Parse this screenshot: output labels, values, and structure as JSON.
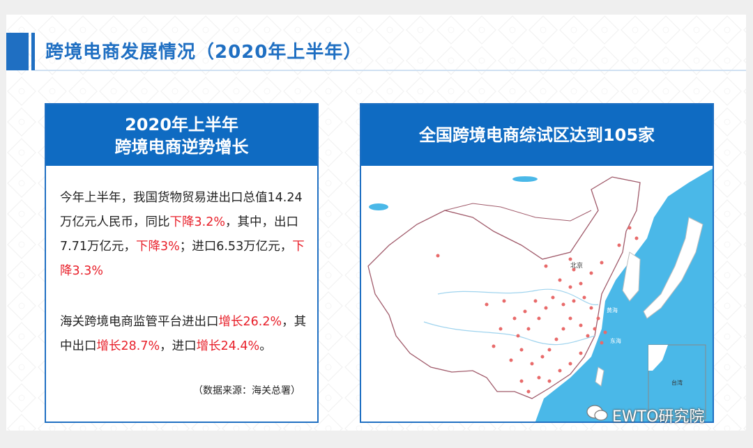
{
  "header": {
    "title": "跨境电商发展情况（2020年上半年）"
  },
  "left": {
    "heading_line1": "2020年上半年",
    "heading_line2": "跨境电商逆势增长",
    "p1": [
      {
        "text": "今年上半年，我国货物贸易进出口总值14.24万亿元人民币，同比",
        "red": false
      },
      {
        "text": "下降3.2%",
        "red": true
      },
      {
        "text": "，其中，出口7.71万亿元，",
        "red": false
      },
      {
        "text": "下降3%",
        "red": true
      },
      {
        "text": "；进口6.53万亿元，",
        "red": false
      },
      {
        "text": "下降3.3%",
        "red": true
      }
    ],
    "p2": [
      {
        "text": "海关跨境电商监管平台进出口",
        "red": false
      },
      {
        "text": "增长26.2%",
        "red": true
      },
      {
        "text": "，其中出口",
        "red": false
      },
      {
        "text": "增长28.7%",
        "red": true
      },
      {
        "text": "，进口",
        "red": false
      },
      {
        "text": "增长24.4%",
        "red": true
      },
      {
        "text": "。",
        "red": false
      }
    ],
    "source": "（数据来源：海关总署）"
  },
  "right": {
    "heading": "全国跨境电商综试区达到105家",
    "map_labels": {
      "beijing": "北京",
      "sea_east": "黄海",
      "sea_east2": "东海",
      "island": "台湾"
    }
  },
  "watermark": "EWTO研究院",
  "colors": {
    "brand_blue": "#0f6bc2",
    "accent_red": "#e8202a",
    "sea": "#4ab8e8",
    "land": "#ffffff",
    "dot": "#e86a6a"
  }
}
